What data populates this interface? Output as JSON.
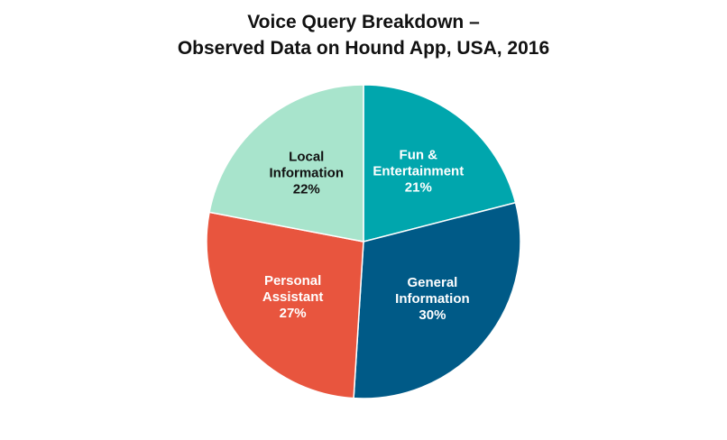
{
  "chart_data": {
    "type": "pie",
    "title_lines": [
      "Voice Query Breakdown –",
      "Observed Data on Hound App, USA, 2016"
    ],
    "slices": [
      {
        "label_lines": [
          "Fun &",
          "Entertainment"
        ],
        "value": 21,
        "value_label": "21%",
        "color": "#00a6ad",
        "text_color": "#ffffff"
      },
      {
        "label_lines": [
          "General",
          "Information"
        ],
        "value": 30,
        "value_label": "30%",
        "color": "#005a87",
        "text_color": "#ffffff"
      },
      {
        "label_lines": [
          "Personal",
          "Assistant"
        ],
        "value": 27,
        "value_label": "27%",
        "color": "#e8553e",
        "text_color": "#ffffff"
      },
      {
        "label_lines": [
          "Local",
          "Information"
        ],
        "value": 22,
        "value_label": "22%",
        "color": "#a8e4cc",
        "text_color": "#111111"
      }
    ],
    "start": "12 o'clock",
    "direction": "clockwise",
    "legend": "none"
  }
}
